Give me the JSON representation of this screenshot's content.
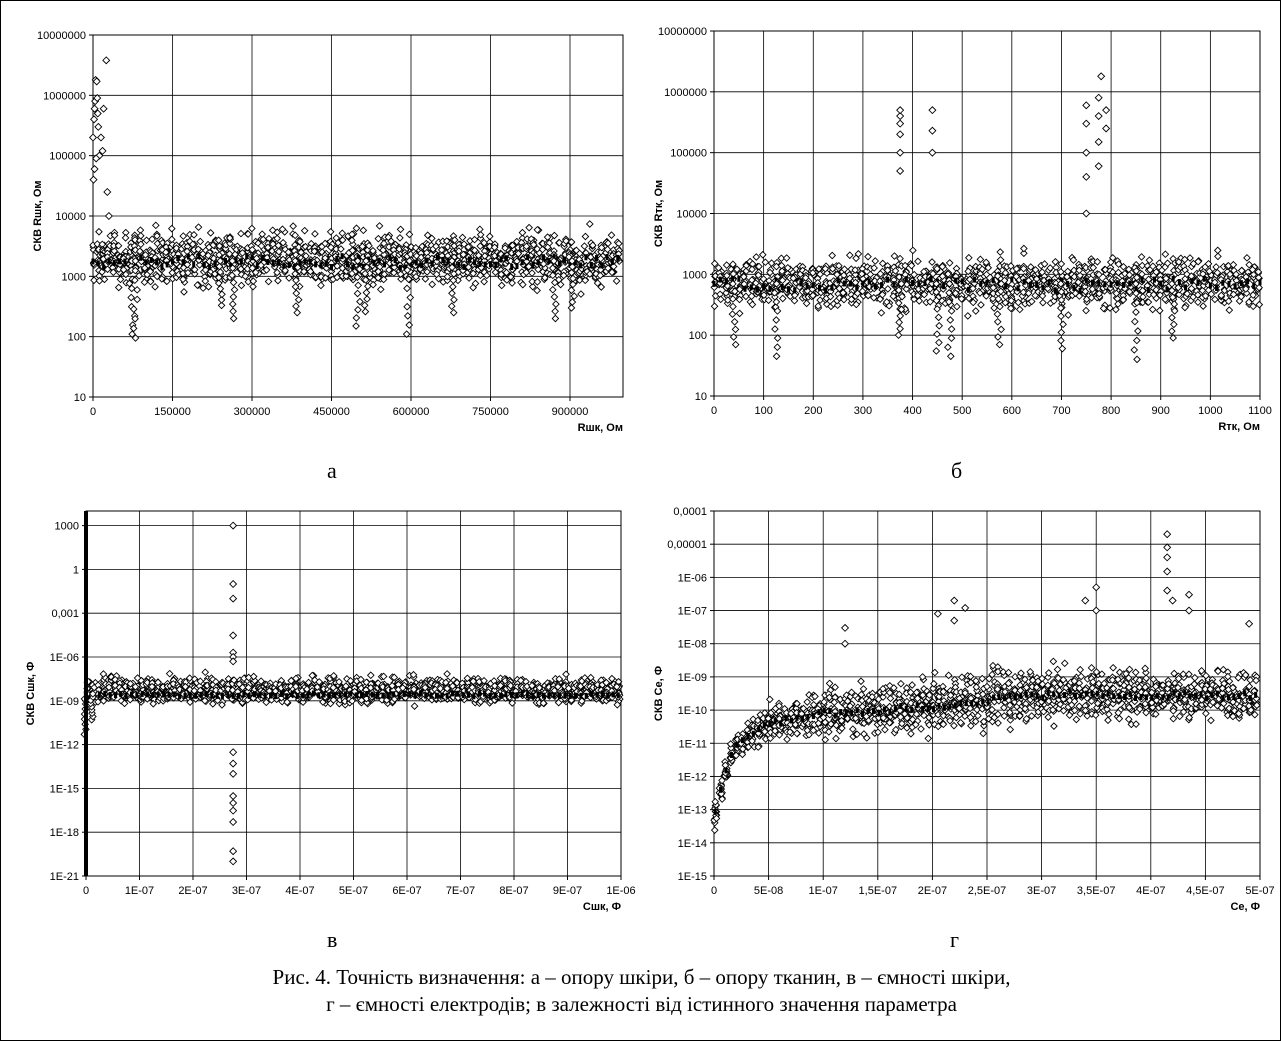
{
  "caption": {
    "line1": "Рис. 4. Точність визначення: а – опору шкіри, б – опору тканин, в – ємності шкіри,",
    "line2": "г – ємності електродів; в залежності від істинного значення параметра"
  },
  "chart_data": [
    {
      "panel": "а",
      "type": "scatter",
      "marker": "open-diamond",
      "xlabel": "Rшк, Ом",
      "ylabel": "СКВ Rшк, Ом",
      "xlim": [
        0,
        1000000
      ],
      "ylim": [
        10,
        10000000
      ],
      "yscale": "log",
      "grid": true,
      "xticks": [
        "0",
        "150000",
        "300000",
        "450000",
        "600000",
        "750000",
        "900000"
      ],
      "xtick_values": [
        0,
        150000,
        300000,
        450000,
        600000,
        750000,
        900000
      ],
      "yticks": [
        "10",
        "100",
        "1000",
        "10000",
        "100000",
        "1000000",
        "10000000"
      ],
      "yexp": [
        1,
        2,
        3,
        4,
        5,
        6,
        7
      ],
      "band": {
        "x_start": 0,
        "x_step": 10000,
        "count": 100,
        "low": 500,
        "high": 7500,
        "mean": 1800,
        "dips": [
          [
            75000,
            110
          ],
          [
            80000,
            95
          ],
          [
            240000,
            330
          ],
          [
            265000,
            200
          ],
          [
            385000,
            250
          ],
          [
            500000,
            150
          ],
          [
            515000,
            260
          ],
          [
            595000,
            110
          ],
          [
            680000,
            250
          ],
          [
            870000,
            200
          ],
          [
            905000,
            300
          ]
        ]
      },
      "outliers": [
        [
          0,
          200000
        ],
        [
          2000,
          400000
        ],
        [
          3000,
          600000
        ],
        [
          4000,
          800000
        ],
        [
          5000,
          1800000
        ],
        [
          7000,
          1700000
        ],
        [
          8000,
          900000
        ],
        [
          9000,
          500000
        ],
        [
          10000,
          300000
        ],
        [
          12000,
          100000
        ],
        [
          15000,
          200000
        ],
        [
          18000,
          120000
        ],
        [
          20000,
          600000
        ],
        [
          25000,
          3800000
        ],
        [
          27000,
          25000
        ],
        [
          30000,
          10000
        ],
        [
          3000,
          60000
        ],
        [
          6000,
          90000
        ],
        [
          1000,
          40000
        ]
      ]
    },
    {
      "panel": "б",
      "type": "scatter",
      "marker": "open-diamond",
      "xlabel": "Rтк, Ом",
      "ylabel": "СКВ Rтк, Ом",
      "xlim": [
        0,
        1100
      ],
      "ylim": [
        10,
        10000000
      ],
      "yscale": "log",
      "grid": true,
      "xticks": [
        "0",
        "100",
        "200",
        "300",
        "400",
        "500",
        "600",
        "700",
        "800",
        "900",
        "1000",
        "1100"
      ],
      "xtick_values": [
        0,
        100,
        200,
        300,
        400,
        500,
        600,
        700,
        800,
        900,
        1000,
        1100
      ],
      "yticks": [
        "10",
        "100",
        "1000",
        "10000",
        "100000",
        "1000000",
        "10000000"
      ],
      "yexp": [
        1,
        2,
        3,
        4,
        5,
        6,
        7
      ],
      "band": {
        "x_start": 0,
        "x_step": 12.5,
        "count": 89,
        "low": 180,
        "high": 2800,
        "mean": 700,
        "dips": [
          [
            125,
            45
          ],
          [
            375,
            100
          ],
          [
            450,
            55
          ],
          [
            475,
            45
          ],
          [
            575,
            70
          ],
          [
            700,
            60
          ],
          [
            850,
            40
          ],
          [
            925,
            90
          ],
          [
            40,
            70
          ]
        ]
      },
      "outliers": [
        [
          375,
          50000
        ],
        [
          375,
          100000
        ],
        [
          375,
          200000
        ],
        [
          375,
          300000
        ],
        [
          375,
          400000
        ],
        [
          375,
          500000
        ],
        [
          440,
          100000
        ],
        [
          440,
          230000
        ],
        [
          440,
          500000
        ],
        [
          750,
          10000
        ],
        [
          750,
          40000
        ],
        [
          750,
          100000
        ],
        [
          750,
          300000
        ],
        [
          750,
          600000
        ],
        [
          775,
          60000
        ],
        [
          775,
          150000
        ],
        [
          775,
          400000
        ],
        [
          775,
          800000
        ],
        [
          780,
          1800000
        ],
        [
          790,
          250000
        ],
        [
          790,
          500000
        ]
      ]
    },
    {
      "panel": "в",
      "type": "scatter",
      "marker": "open-diamond",
      "xlabel": "Cшк, Ф",
      "ylabel": "СКВ Cшк, Ф",
      "xlim": [
        0,
        1e-06
      ],
      "ylim": [
        1e-21,
        10000
      ],
      "yscale": "log",
      "grid": true,
      "xticks": [
        "0",
        "1E-07",
        "2E-07",
        "3E-07",
        "4E-07",
        "5E-07",
        "6E-07",
        "7E-07",
        "8E-07",
        "9E-07",
        "1E-06"
      ],
      "xtick_values": [
        0,
        1e-07,
        2e-07,
        3e-07,
        4e-07,
        5e-07,
        6e-07,
        7e-07,
        8e-07,
        9e-07,
        1e-06
      ],
      "yticks": [
        "1E-21",
        "1E-18",
        "1E-15",
        "1E-12",
        "1E-09",
        "1E-06",
        "0,001",
        "1",
        "1000"
      ],
      "yexp": [
        -21,
        -18,
        -15,
        -12,
        -9,
        -6,
        -3,
        0,
        3
      ],
      "band": {
        "x_start": 5e-09,
        "x_step": 1e-08,
        "count": 100,
        "low": 3e-10,
        "high": 1e-07,
        "mean": 3e-09,
        "dips": [
          [
            0,
            5e-12
          ],
          [
            1e-08,
            5e-11
          ]
        ]
      },
      "outliers": [
        [
          2.75e-07,
          1000
        ],
        [
          2.75e-07,
          0.1
        ],
        [
          2.75e-07,
          0.01
        ],
        [
          2.75e-07,
          3e-05
        ],
        [
          2.75e-07,
          2e-06
        ],
        [
          2.75e-07,
          1e-06
        ],
        [
          2.75e-07,
          5e-07
        ],
        [
          2.75e-07,
          3e-13
        ],
        [
          2.75e-07,
          5e-14
        ],
        [
          2.75e-07,
          1e-14
        ],
        [
          2.75e-07,
          3e-16
        ],
        [
          2.75e-07,
          1e-16
        ],
        [
          2.75e-07,
          3e-17
        ],
        [
          2.75e-07,
          5e-18
        ],
        [
          2.75e-07,
          1e-20
        ],
        [
          2.75e-07,
          5e-20
        ]
      ]
    },
    {
      "panel": "г",
      "type": "scatter",
      "marker": "open-diamond",
      "xlabel": "Ce, Ф",
      "ylabel": "СКВ Ce, Ф",
      "xlim": [
        0,
        5e-07
      ],
      "ylim": [
        1e-15,
        0.0001
      ],
      "yscale": "log",
      "grid": true,
      "xticks": [
        "0",
        "5E-08",
        "1E-07",
        "1,5E-07",
        "2E-07",
        "2,5E-07",
        "3E-07",
        "3,5E-07",
        "4E-07",
        "4,5E-07",
        "5E-07"
      ],
      "xtick_values": [
        0,
        5e-08,
        1e-07,
        1.5e-07,
        2e-07,
        2.5e-07,
        3e-07,
        3.5e-07,
        4e-07,
        4.5e-07,
        5e-07
      ],
      "yticks": [
        "1E-15",
        "1E-14",
        "1E-13",
        "1E-12",
        "1E-11",
        "1E-10",
        "1E-09",
        "1E-08",
        "1E-07",
        "1E-06",
        "0,00001",
        "0,0001"
      ],
      "yexp": [
        -15,
        -14,
        -13,
        -12,
        -11,
        -10,
        -9,
        -8,
        -7,
        -6,
        -5,
        -4
      ],
      "band": {
        "x_start": 1e-09,
        "x_step": 5e-09,
        "count": 100,
        "low": 1e-11,
        "high": 3e-09,
        "mean": 3e-10,
        "dips": []
      },
      "trend": [
        [
          0,
          1e-14,
          3e-13
        ],
        [
          1e-08,
          5e-13,
          3e-12
        ],
        [
          2e-08,
          3e-12,
          3e-11
        ],
        [
          5e-08,
          5e-12,
          3e-10
        ],
        [
          1e-07,
          8e-12,
          1e-09
        ],
        [
          1.5e-07,
          1e-11,
          1e-09
        ],
        [
          2e-07,
          1e-11,
          2e-09
        ],
        [
          3e-07,
          2e-11,
          5e-09
        ],
        [
          4e-07,
          3e-11,
          3e-09
        ],
        [
          5e-07,
          3e-11,
          3e-09
        ]
      ],
      "outliers": [
        [
          1.2e-07,
          3e-08
        ],
        [
          1.2e-07,
          1e-08
        ],
        [
          2.05e-07,
          8e-08
        ],
        [
          2.2e-07,
          2e-07
        ],
        [
          2.2e-07,
          5e-08
        ],
        [
          2.3e-07,
          1.2e-07
        ],
        [
          3.4e-07,
          2e-07
        ],
        [
          3.5e-07,
          5e-07
        ],
        [
          3.5e-07,
          1e-07
        ],
        [
          4.15e-07,
          2e-05
        ],
        [
          4.15e-07,
          8e-06
        ],
        [
          4.15e-07,
          4e-06
        ],
        [
          4.15e-07,
          1.5e-06
        ],
        [
          4.15e-07,
          4e-07
        ],
        [
          4.2e-07,
          2e-07
        ],
        [
          4.35e-07,
          3e-07
        ],
        [
          4.35e-07,
          1e-07
        ],
        [
          4.9e-07,
          4e-08
        ]
      ]
    }
  ]
}
